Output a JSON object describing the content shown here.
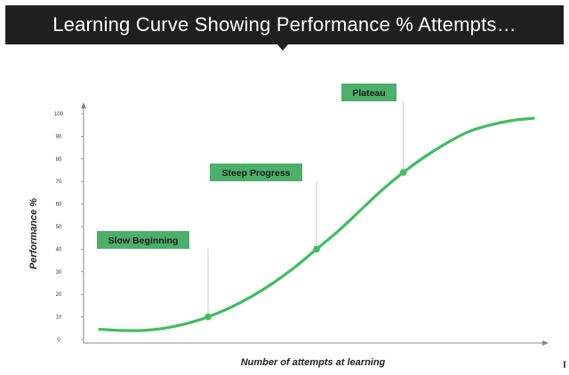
{
  "title": "Learning Curve Showing Performance % Attempts…",
  "colors": {
    "curve": "#3cbf5c",
    "callout": "#4caf6a",
    "title_bg": "#1f1f1f",
    "title_fg": "#ffffff"
  },
  "chart_data": {
    "type": "line",
    "xlabel": "Number of attempts at learning",
    "ylabel": "Performance %",
    "ylim": [
      0,
      100
    ],
    "yticks": [
      0,
      10,
      20,
      30,
      40,
      50,
      60,
      70,
      80,
      90,
      100
    ],
    "xlim": [
      0,
      10
    ],
    "grid": false,
    "series": [
      {
        "x": [
          0,
          0.5,
          1,
          1.5,
          2,
          2.5,
          3,
          3.5,
          4,
          4.5,
          5,
          5.5,
          6,
          6.5,
          7,
          7.5,
          8,
          8.5,
          9,
          9.5,
          10
        ],
        "values": [
          4.5,
          4,
          4,
          5,
          7,
          10,
          14,
          19,
          25,
          32,
          40,
          48,
          57,
          66,
          74,
          81,
          87,
          92,
          95,
          97,
          98
        ]
      }
    ],
    "annotations": [
      {
        "label": "Slow Beginning",
        "x": 2.5,
        "y": 10
      },
      {
        "label": "Steep Progress",
        "x": 5,
        "y": 40
      },
      {
        "label": "Plateau",
        "x": 7,
        "y": 74
      }
    ]
  }
}
